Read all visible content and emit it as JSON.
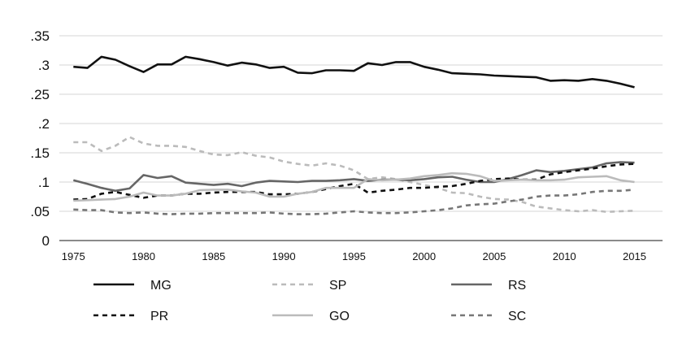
{
  "chart_data": {
    "type": "line",
    "title": "",
    "xlabel": "",
    "ylabel": "",
    "xlim": [
      1974,
      2017
    ],
    "ylim": [
      0,
      0.35
    ],
    "grid": "horizontal",
    "legend_position": "bottom",
    "y_ticks": [
      {
        "value": 0,
        "label": "0"
      },
      {
        "value": 0.05,
        "label": ".05"
      },
      {
        "value": 0.1,
        "label": ".1"
      },
      {
        "value": 0.15,
        "label": ".15"
      },
      {
        "value": 0.2,
        "label": ".2"
      },
      {
        "value": 0.25,
        "label": ".25"
      },
      {
        "value": 0.3,
        "label": ".3"
      },
      {
        "value": 0.35,
        "label": ".35"
      }
    ],
    "x_ticks": [
      {
        "value": 1975,
        "label": "1975"
      },
      {
        "value": 1980,
        "label": "1980"
      },
      {
        "value": 1985,
        "label": "1985"
      },
      {
        "value": 1990,
        "label": "1990"
      },
      {
        "value": 1995,
        "label": "1995"
      },
      {
        "value": 2000,
        "label": "2000"
      },
      {
        "value": 2005,
        "label": "2005"
      },
      {
        "value": 2010,
        "label": "2010"
      },
      {
        "value": 2015,
        "label": "2015"
      }
    ],
    "x": [
      1975,
      1976,
      1977,
      1978,
      1979,
      1980,
      1981,
      1982,
      1983,
      1984,
      1985,
      1986,
      1987,
      1988,
      1989,
      1990,
      1991,
      1992,
      1993,
      1994,
      1995,
      1996,
      1997,
      1998,
      1999,
      2000,
      2001,
      2002,
      2003,
      2004,
      2005,
      2006,
      2007,
      2008,
      2009,
      2010,
      2011,
      2012,
      2013,
      2014,
      2015
    ],
    "series": [
      {
        "name": "MG",
        "color": "#111111",
        "dash": "solid",
        "values": [
          0.297,
          0.295,
          0.314,
          0.309,
          0.298,
          0.288,
          0.301,
          0.301,
          0.314,
          0.31,
          0.305,
          0.299,
          0.304,
          0.301,
          0.295,
          0.297,
          0.287,
          0.286,
          0.291,
          0.291,
          0.29,
          0.303,
          0.3,
          0.305,
          0.305,
          0.297,
          0.292,
          0.286,
          0.285,
          0.284,
          0.282,
          0.281,
          0.28,
          0.279,
          0.273,
          0.274,
          0.273,
          0.276,
          0.273,
          0.268,
          0.262
        ]
      },
      {
        "name": "SP",
        "color": "#bbbbbb",
        "dash": "dashed",
        "values": [
          0.168,
          0.168,
          0.153,
          0.162,
          0.177,
          0.166,
          0.162,
          0.162,
          0.16,
          0.153,
          0.147,
          0.146,
          0.151,
          0.145,
          0.142,
          0.135,
          0.131,
          0.128,
          0.132,
          0.128,
          0.12,
          0.105,
          0.108,
          0.105,
          0.1,
          0.095,
          0.09,
          0.082,
          0.081,
          0.075,
          0.071,
          0.07,
          0.066,
          0.058,
          0.055,
          0.052,
          0.05,
          0.052,
          0.049,
          0.05,
          0.051
        ]
      },
      {
        "name": "RS",
        "color": "#666666",
        "dash": "solid",
        "values": [
          0.103,
          0.097,
          0.09,
          0.085,
          0.089,
          0.112,
          0.107,
          0.11,
          0.099,
          0.097,
          0.095,
          0.097,
          0.093,
          0.099,
          0.102,
          0.101,
          0.1,
          0.102,
          0.102,
          0.103,
          0.105,
          0.102,
          0.104,
          0.104,
          0.103,
          0.105,
          0.108,
          0.109,
          0.104,
          0.1,
          0.1,
          0.105,
          0.112,
          0.12,
          0.117,
          0.119,
          0.122,
          0.125,
          0.132,
          0.134,
          0.133
        ]
      },
      {
        "name": "PR",
        "color": "#111111",
        "dash": "dashed",
        "values": [
          0.07,
          0.071,
          0.08,
          0.083,
          0.078,
          0.073,
          0.077,
          0.077,
          0.08,
          0.08,
          0.082,
          0.083,
          0.083,
          0.083,
          0.079,
          0.079,
          0.08,
          0.083,
          0.088,
          0.093,
          0.097,
          0.082,
          0.085,
          0.087,
          0.09,
          0.09,
          0.092,
          0.093,
          0.097,
          0.102,
          0.105,
          0.106,
          0.104,
          0.104,
          0.113,
          0.117,
          0.12,
          0.123,
          0.127,
          0.13,
          0.131
        ]
      },
      {
        "name": "GO",
        "color": "#bbbbbb",
        "dash": "solid",
        "values": [
          0.068,
          0.069,
          0.07,
          0.071,
          0.075,
          0.082,
          0.077,
          0.077,
          0.08,
          0.086,
          0.087,
          0.087,
          0.084,
          0.082,
          0.075,
          0.075,
          0.08,
          0.083,
          0.09,
          0.09,
          0.09,
          0.105,
          0.103,
          0.104,
          0.106,
          0.11,
          0.112,
          0.115,
          0.114,
          0.11,
          0.102,
          0.103,
          0.104,
          0.103,
          0.103,
          0.104,
          0.108,
          0.109,
          0.11,
          0.103,
          0.1
        ]
      },
      {
        "name": "SC",
        "color": "#777777",
        "dash": "dashed",
        "values": [
          0.053,
          0.052,
          0.052,
          0.048,
          0.047,
          0.048,
          0.046,
          0.045,
          0.046,
          0.046,
          0.047,
          0.047,
          0.047,
          0.047,
          0.048,
          0.046,
          0.045,
          0.045,
          0.046,
          0.048,
          0.05,
          0.048,
          0.047,
          0.047,
          0.048,
          0.05,
          0.052,
          0.055,
          0.06,
          0.062,
          0.063,
          0.067,
          0.07,
          0.075,
          0.077,
          0.077,
          0.079,
          0.083,
          0.085,
          0.085,
          0.087
        ]
      }
    ]
  }
}
